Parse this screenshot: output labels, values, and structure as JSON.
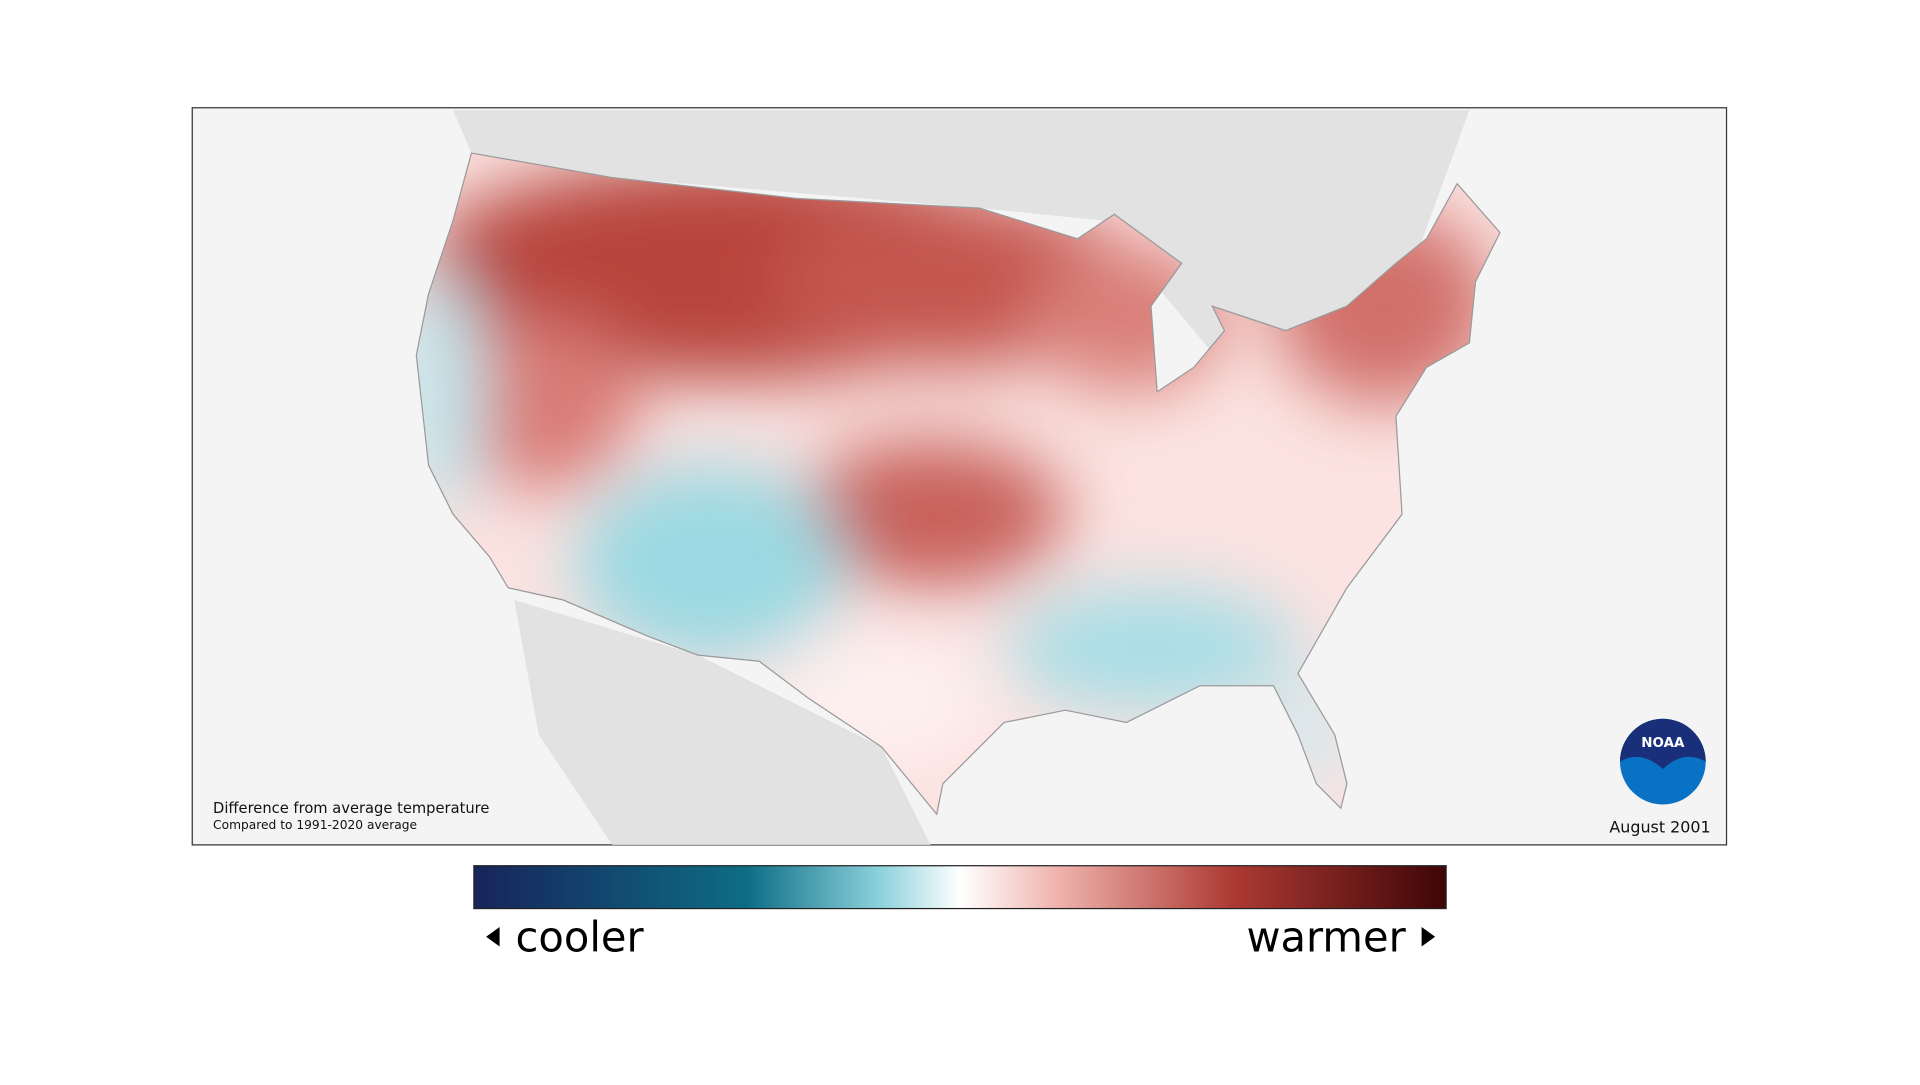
{
  "map": {
    "note": "Difference from average temperature",
    "subnote": "Compared to 1991-2020 average",
    "date": "August 2001",
    "logo": "NOAA"
  },
  "legend": {
    "low": "cooler",
    "high": "warmer"
  }
}
